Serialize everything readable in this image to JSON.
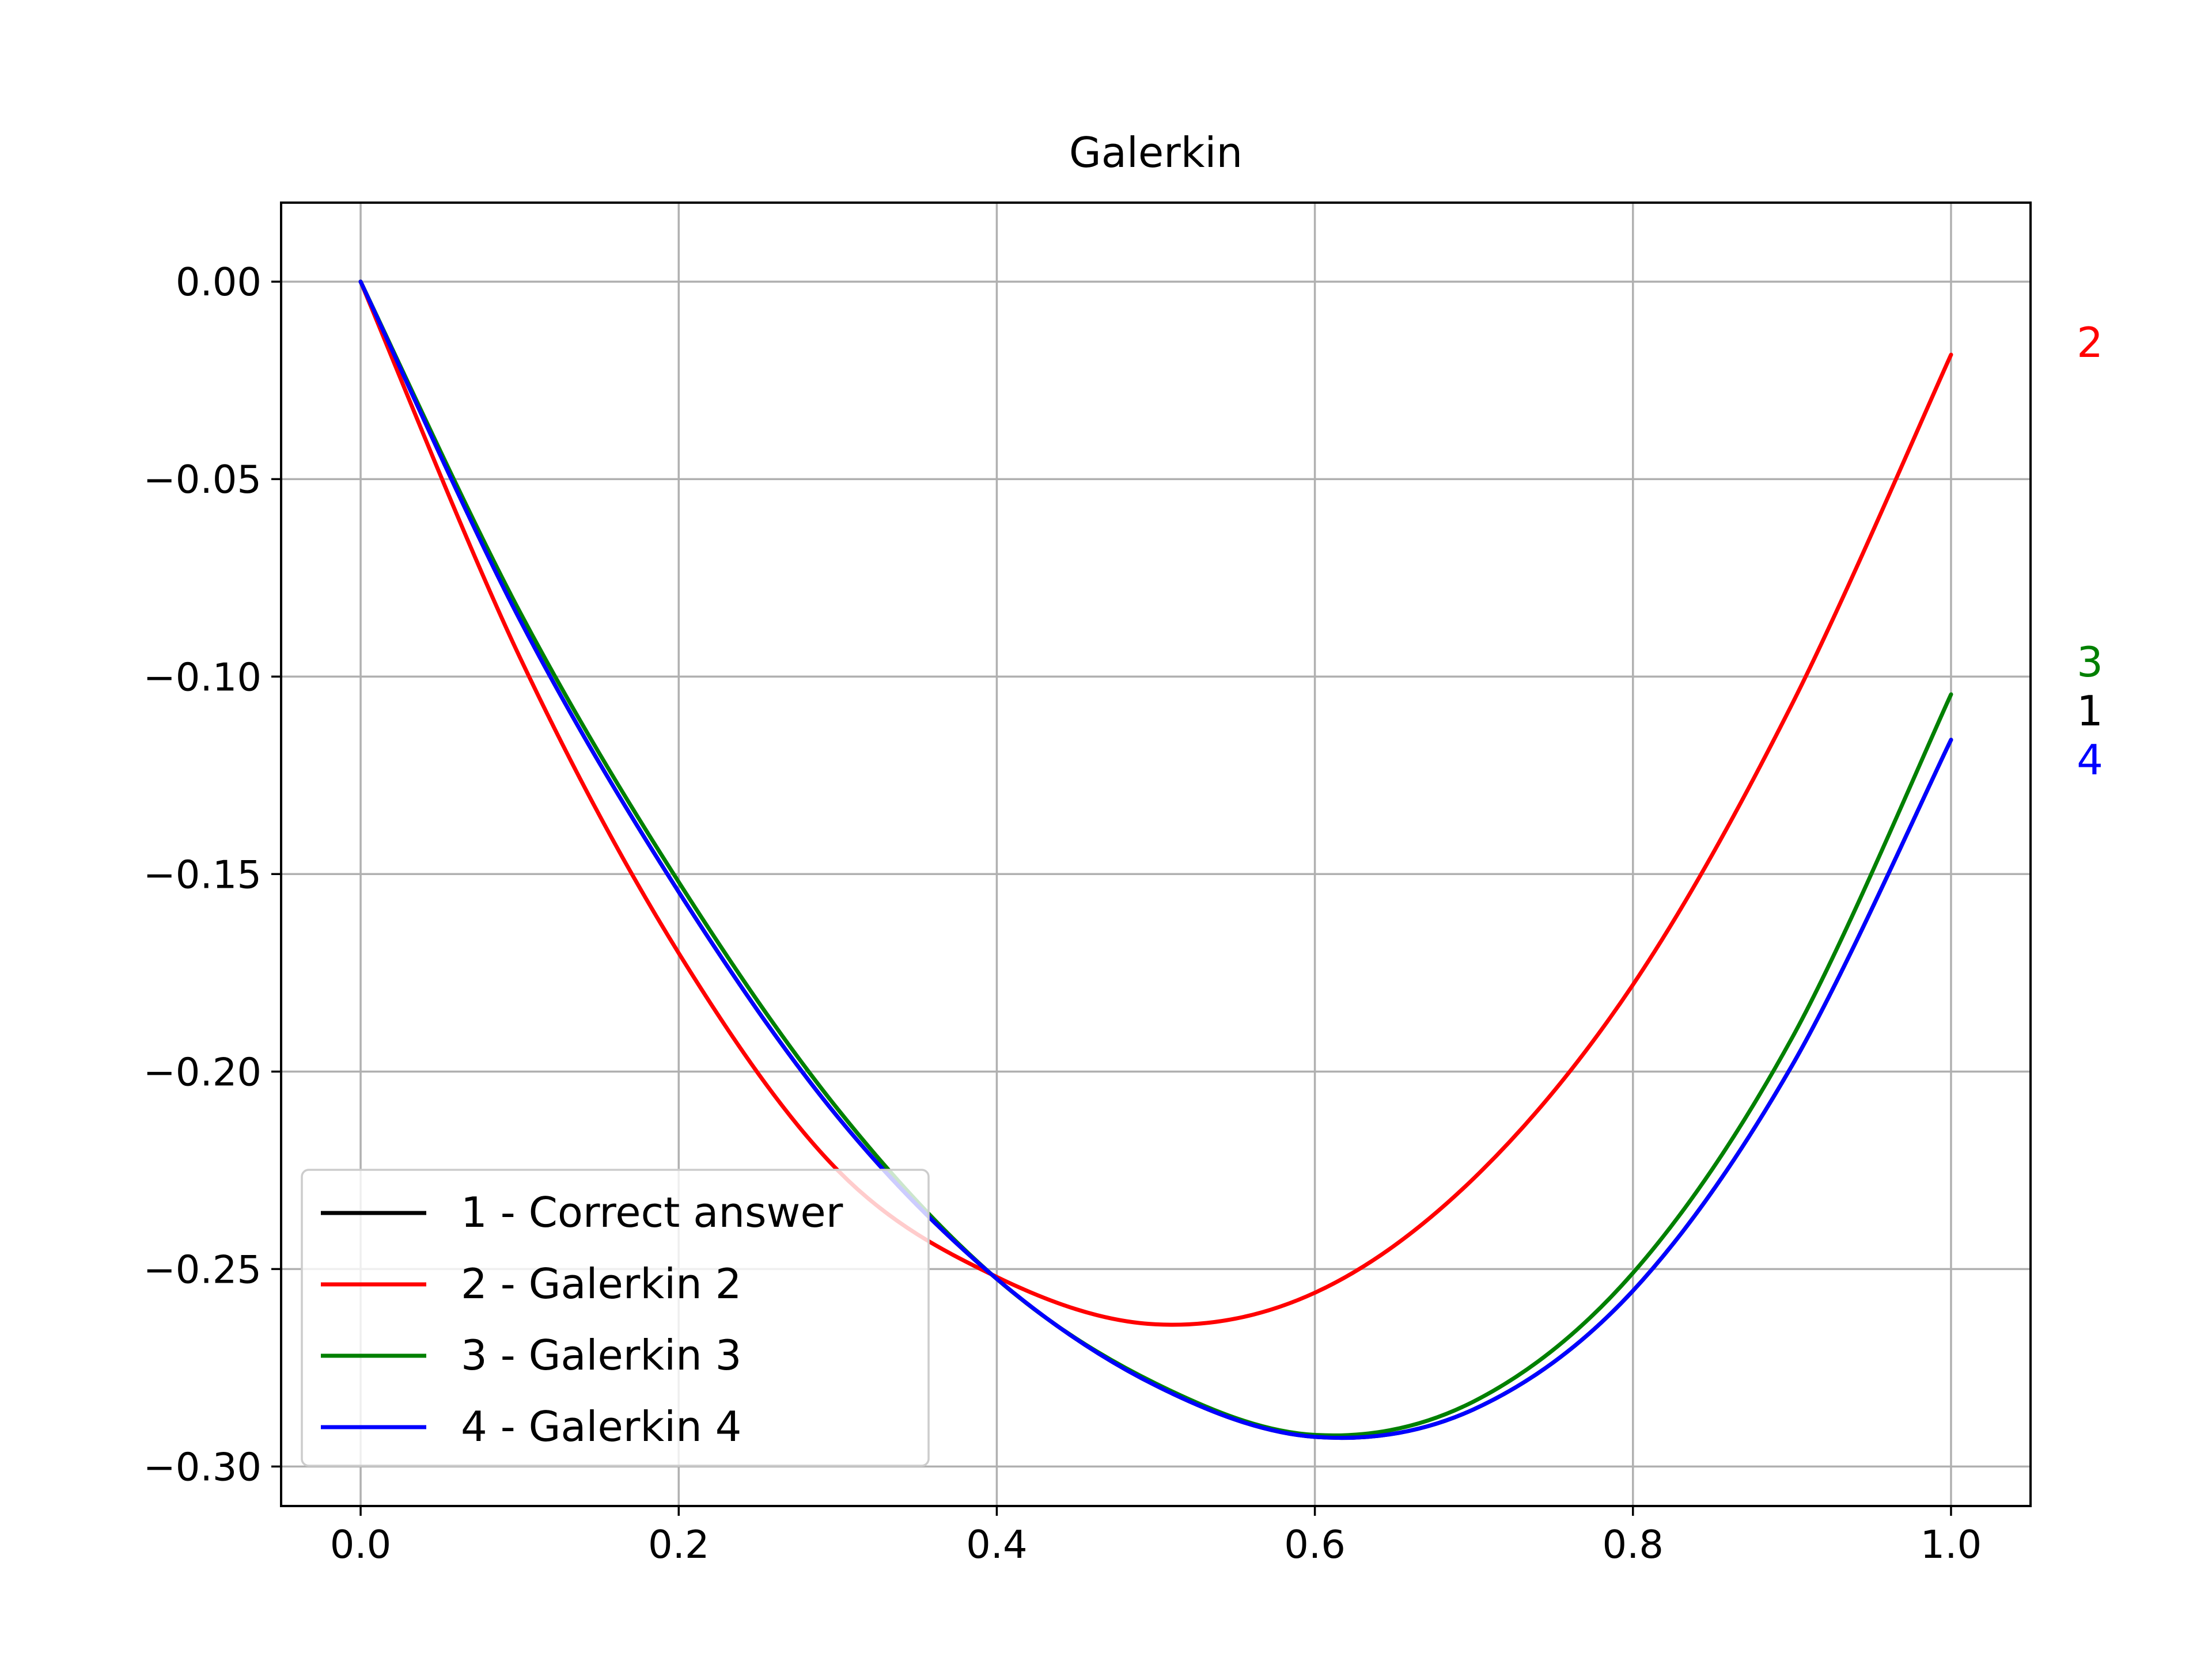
{
  "chart_data": {
    "type": "line",
    "title": "Galerkin",
    "xlabel": "",
    "ylabel": "",
    "xlim": [
      -0.05,
      1.05
    ],
    "ylim": [
      -0.31,
      0.02
    ],
    "grid": true,
    "legend_position": "lower-left",
    "x_ticks": [
      "0.0",
      "0.2",
      "0.4",
      "0.6",
      "0.8",
      "1.0"
    ],
    "x_tick_values": [
      0.0,
      0.2,
      0.4,
      0.6,
      0.8,
      1.0
    ],
    "y_ticks": [
      "0.00",
      "−0.05",
      "−0.10",
      "−0.15",
      "−0.20",
      "−0.25",
      "−0.30"
    ],
    "y_tick_values": [
      0.0,
      -0.05,
      -0.1,
      -0.15,
      -0.2,
      -0.25,
      -0.3
    ],
    "x": [
      0.0,
      0.1,
      0.2,
      0.3,
      0.4,
      0.5,
      0.6,
      0.7,
      0.8,
      0.9,
      1.0
    ],
    "series": [
      {
        "name": "1 - Correct answer",
        "end_label": "1",
        "color": "#000000",
        "values": [
          0.0,
          -0.0855,
          -0.1545,
          -0.2115,
          -0.2525,
          -0.2795,
          -0.2925,
          -0.2855,
          -0.2555,
          -0.1985,
          -0.116
        ]
      },
      {
        "name": "2 - Galerkin 2",
        "end_label": "2",
        "color": "#ff0000",
        "values": [
          0.0,
          -0.095,
          -0.17,
          -0.225,
          -0.252,
          -0.264,
          -0.256,
          -0.227,
          -0.178,
          -0.107,
          -0.0185
        ]
      },
      {
        "name": "3 - Galerkin 3",
        "end_label": "3",
        "color": "#008000",
        "values": [
          0.0,
          -0.0835,
          -0.152,
          -0.2095,
          -0.2525,
          -0.279,
          -0.292,
          -0.2835,
          -0.251,
          -0.1915,
          -0.1045
        ]
      },
      {
        "name": "4 - Galerkin 4",
        "end_label": "4",
        "color": "#0000ff",
        "values": [
          0.0,
          -0.0855,
          -0.1545,
          -0.2115,
          -0.2525,
          -0.2795,
          -0.2925,
          -0.2855,
          -0.2555,
          -0.1985,
          -0.116
        ]
      }
    ]
  }
}
